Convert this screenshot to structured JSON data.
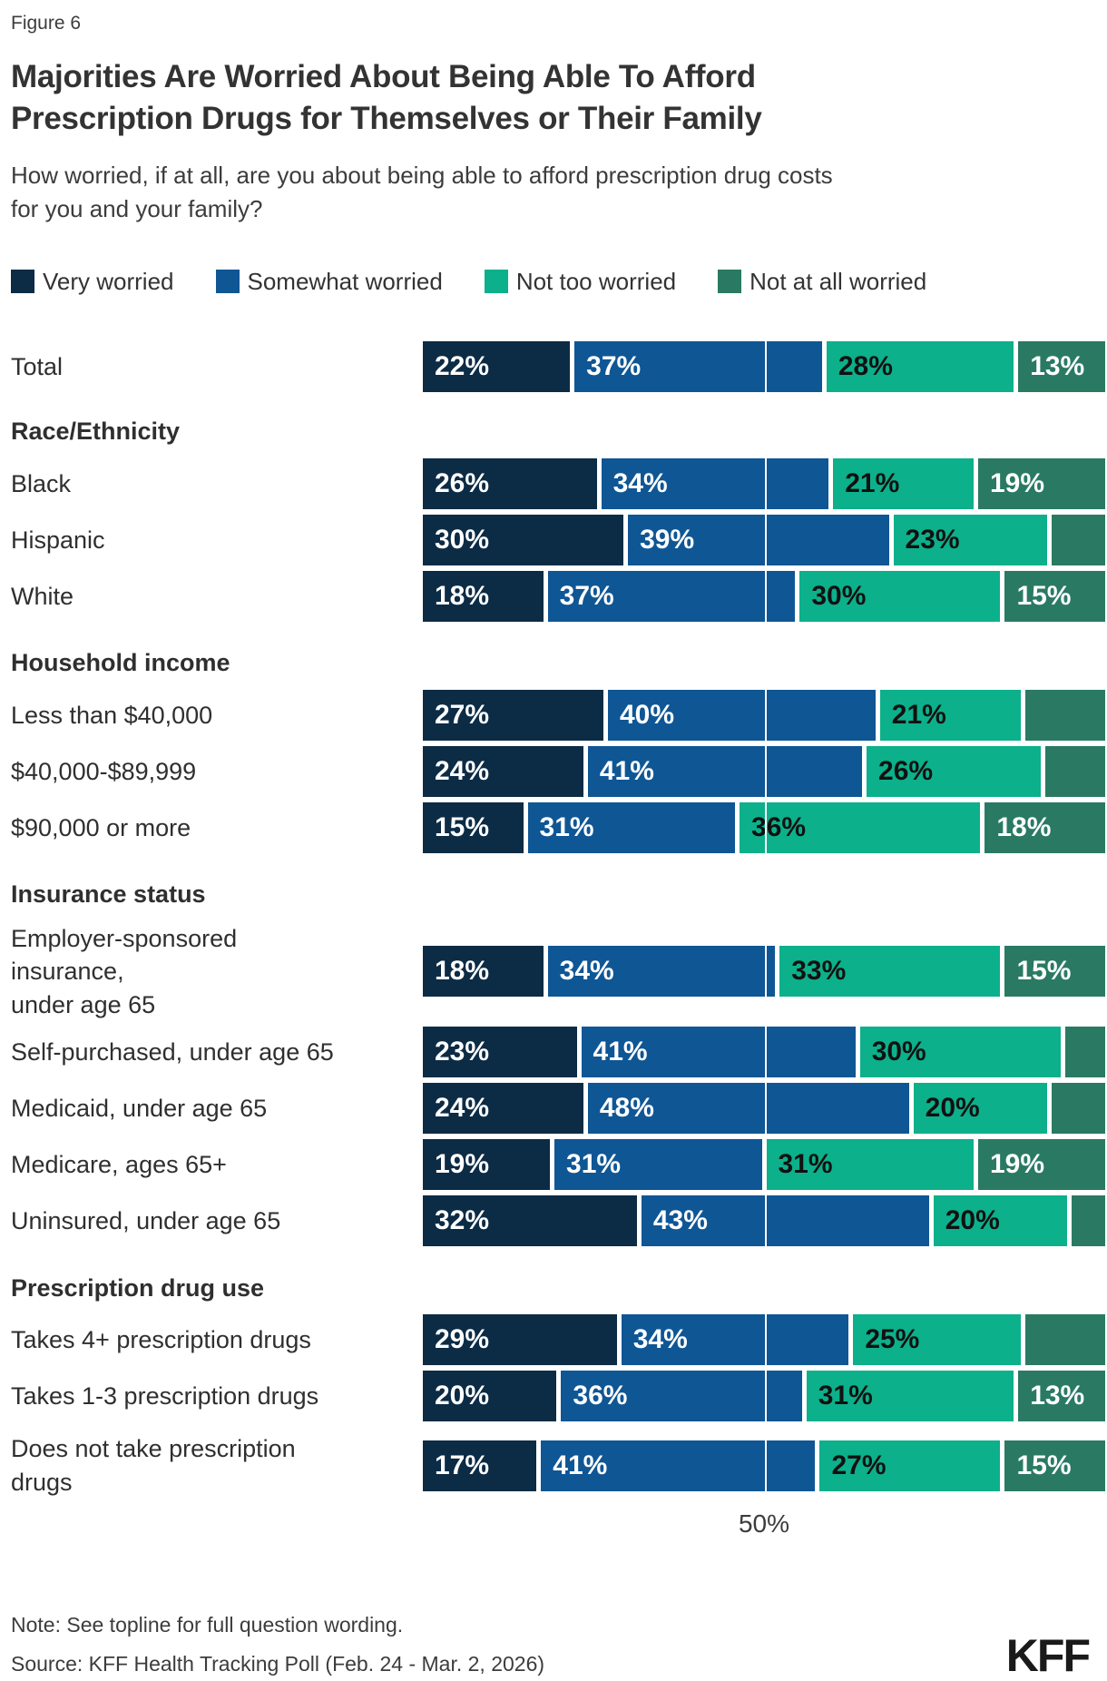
{
  "figure_label": "Figure 6",
  "title": "Majorities Are Worried About Being Able To Afford\nPrescription Drugs for Themselves or Their Family",
  "subtitle": "How worried, if at all, are you about being able to afford prescription drug costs\nfor you and your family?",
  "legend": [
    {
      "label": "Very worried",
      "color": "#0C2B45"
    },
    {
      "label": "Somewhat worried",
      "color": "#0F5695"
    },
    {
      "label": "Not too worried",
      "color": "#0CB08B"
    },
    {
      "label": "Not at all worried",
      "color": "#2A7A63"
    }
  ],
  "axis": {
    "gridline_label": "50%"
  },
  "chart_data": {
    "type": "bar",
    "stacked": true,
    "orientation": "horizontal",
    "unit": "%",
    "xlim": [
      0,
      100
    ],
    "gridline_at": 50,
    "legend_position": "top",
    "series_names": [
      "Very worried",
      "Somewhat worried",
      "Not too worried",
      "Not at all worried"
    ],
    "colors": [
      "#0C2B45",
      "#0F5695",
      "#0CB08B",
      "#2A7A63"
    ],
    "label_text_colors": [
      "#ffffff",
      "#ffffff",
      "#111111",
      "#ffffff"
    ],
    "rows": [
      {
        "kind": "bar",
        "label": "Total",
        "values": [
          22,
          37,
          28,
          13
        ],
        "show_labels": [
          true,
          true,
          true,
          true
        ]
      },
      {
        "kind": "header",
        "label": "Race/Ethnicity"
      },
      {
        "kind": "bar",
        "label": "Black",
        "values": [
          26,
          34,
          21,
          19
        ],
        "show_labels": [
          true,
          true,
          true,
          true
        ]
      },
      {
        "kind": "bar",
        "label": "Hispanic",
        "values": [
          30,
          39,
          23,
          8
        ],
        "show_labels": [
          true,
          true,
          true,
          false
        ]
      },
      {
        "kind": "bar",
        "label": "White",
        "values": [
          18,
          37,
          30,
          15
        ],
        "show_labels": [
          true,
          true,
          true,
          true
        ]
      },
      {
        "kind": "header",
        "label": "Household income"
      },
      {
        "kind": "bar",
        "label": "Less than $40,000",
        "values": [
          27,
          40,
          21,
          12
        ],
        "show_labels": [
          true,
          true,
          true,
          false
        ]
      },
      {
        "kind": "bar",
        "label": "$40,000-$89,999",
        "values": [
          24,
          41,
          26,
          9
        ],
        "show_labels": [
          true,
          true,
          true,
          false
        ]
      },
      {
        "kind": "bar",
        "label": "$90,000 or more",
        "values": [
          15,
          31,
          36,
          18
        ],
        "show_labels": [
          true,
          true,
          true,
          true
        ]
      },
      {
        "kind": "header",
        "label": "Insurance status"
      },
      {
        "kind": "bar",
        "label": "Employer-sponsored\ninsurance,\nunder age 65",
        "values": [
          18,
          34,
          33,
          15
        ],
        "show_labels": [
          true,
          true,
          true,
          true
        ]
      },
      {
        "kind": "bar",
        "label": "Self-purchased, under age 65",
        "values": [
          23,
          41,
          30,
          6
        ],
        "show_labels": [
          true,
          true,
          true,
          false
        ]
      },
      {
        "kind": "bar",
        "label": "Medicaid, under age 65",
        "values": [
          24,
          48,
          20,
          8
        ],
        "show_labels": [
          true,
          true,
          true,
          false
        ]
      },
      {
        "kind": "bar",
        "label": "Medicare, ages 65+",
        "values": [
          19,
          31,
          31,
          19
        ],
        "show_labels": [
          true,
          true,
          true,
          true
        ]
      },
      {
        "kind": "bar",
        "label": "Uninsured, under age 65",
        "values": [
          32,
          43,
          20,
          5
        ],
        "show_labels": [
          true,
          true,
          true,
          false
        ]
      },
      {
        "kind": "header",
        "label": "Prescription drug use"
      },
      {
        "kind": "bar",
        "label": "Takes 4+ prescription drugs",
        "values": [
          29,
          34,
          25,
          12
        ],
        "show_labels": [
          true,
          true,
          true,
          false
        ]
      },
      {
        "kind": "bar",
        "label": "Takes 1-3 prescription drugs",
        "values": [
          20,
          36,
          31,
          13
        ],
        "show_labels": [
          true,
          true,
          true,
          true
        ]
      },
      {
        "kind": "bar",
        "label": "Does not take prescription\ndrugs",
        "values": [
          17,
          41,
          27,
          15
        ],
        "show_labels": [
          true,
          true,
          true,
          true
        ]
      }
    ]
  },
  "note": "Note: See topline for full question wording.",
  "source": "Source: KFF Health Tracking Poll (Feb. 24 - Mar. 2, 2026)",
  "logo": "KFF"
}
